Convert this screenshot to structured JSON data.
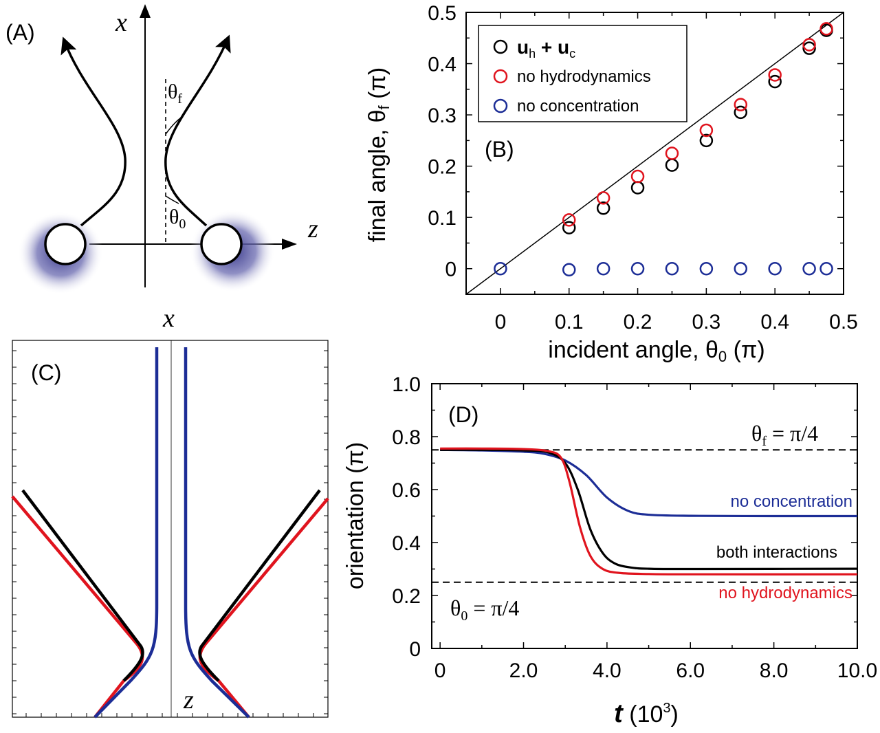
{
  "colors": {
    "black": "#000000",
    "red": "#e0141e",
    "blue": "#1c2d96",
    "purple": "#5a5aa0",
    "gray": "#9a9a9a"
  },
  "panelA": {
    "label": "(A)",
    "x_axis": "x",
    "z_axis": "z",
    "theta_f": "θf",
    "theta_0": "θ0"
  },
  "chart_data": [
    {
      "panel": "B",
      "type": "scatter",
      "label": "(B)",
      "xlabel": "incident angle, θ0 (π)",
      "ylabel": "final angle, θf (π)",
      "xlim": [
        -0.05,
        0.5
      ],
      "ylim": [
        -0.05,
        0.5
      ],
      "xticks": [
        "0",
        "0.1",
        "0.2",
        "0.3",
        "0.4",
        "0.5"
      ],
      "yticks": [
        "0",
        "0.1",
        "0.2",
        "0.3",
        "0.4",
        "0.5"
      ],
      "reference_line": "y = x",
      "legend_position": "top-left",
      "series": [
        {
          "name": "uh + uc",
          "name_main": "u",
          "name_sub1": "h",
          "name_mid": " + ",
          "name_main2": "u",
          "name_sub2": "c",
          "color": "black",
          "x": [
            0.1,
            0.15,
            0.2,
            0.25,
            0.3,
            0.35,
            0.4,
            0.45,
            0.475
          ],
          "y": [
            0.08,
            0.118,
            0.158,
            0.202,
            0.25,
            0.305,
            0.365,
            0.43,
            0.465
          ]
        },
        {
          "name": "no hydrodynamics",
          "color": "red",
          "x": [
            0.1,
            0.15,
            0.2,
            0.25,
            0.3,
            0.35,
            0.4,
            0.45,
            0.475
          ],
          "y": [
            0.095,
            0.138,
            0.18,
            0.225,
            0.27,
            0.32,
            0.378,
            0.437,
            0.468
          ]
        },
        {
          "name": "no concentration",
          "color": "blue",
          "x": [
            0,
            0.1,
            0.15,
            0.2,
            0.25,
            0.3,
            0.35,
            0.4,
            0.45,
            0.475
          ],
          "y": [
            0,
            -0.002,
            0,
            0,
            0,
            0,
            0,
            0,
            0,
            0
          ]
        }
      ]
    },
    {
      "panel": "C",
      "type": "line",
      "label": "(C)",
      "x_axis": "x",
      "z_axis": "z",
      "series": [
        {
          "name": "both interactions",
          "color": "black"
        },
        {
          "name": "no hydrodynamics",
          "color": "red"
        },
        {
          "name": "no concentration",
          "color": "blue"
        }
      ]
    },
    {
      "panel": "D",
      "type": "line",
      "label": "(D)",
      "xlabel_main": "t",
      "xlabel_unit": "(10",
      "xlabel_exp": "3",
      "xlabel_close": ")",
      "ylabel": "orientation (π)",
      "xlim": [
        -0.2,
        10.0
      ],
      "ylim": [
        0,
        1.0
      ],
      "xticks": [
        "0",
        "2.0",
        "4.0",
        "6.0",
        "8.0",
        "10.0"
      ],
      "yticks": [
        "0",
        "0.2",
        "0.4",
        "0.6",
        "0.8",
        "1.0"
      ],
      "hlines": [
        {
          "y": 0.75,
          "label": "θf = π/4"
        },
        {
          "y": 0.25,
          "label": "θ0 = π/4"
        }
      ],
      "series": [
        {
          "name": "no concentration",
          "color": "blue",
          "x": [
            0,
            1,
            2,
            2.5,
            3.0,
            3.5,
            4.0,
            4.5,
            5.0,
            6.0,
            8.0,
            10.0
          ],
          "y": [
            0.75,
            0.748,
            0.743,
            0.735,
            0.71,
            0.655,
            0.57,
            0.52,
            0.505,
            0.501,
            0.5,
            0.5
          ]
        },
        {
          "name": "both interactions",
          "color": "black",
          "x": [
            0,
            1,
            2,
            2.6,
            3.0,
            3.3,
            3.6,
            3.9,
            4.2,
            4.6,
            5.0,
            6.0,
            10.0
          ],
          "y": [
            0.75,
            0.75,
            0.748,
            0.74,
            0.7,
            0.6,
            0.45,
            0.36,
            0.32,
            0.305,
            0.301,
            0.3,
            0.301
          ]
        },
        {
          "name": "no hydrodynamics",
          "color": "red",
          "x": [
            0,
            1,
            2,
            2.6,
            2.9,
            3.1,
            3.35,
            3.6,
            3.9,
            4.3,
            5.0,
            6.0,
            10.0
          ],
          "y": [
            0.755,
            0.755,
            0.753,
            0.745,
            0.72,
            0.63,
            0.46,
            0.35,
            0.3,
            0.285,
            0.281,
            0.28,
            0.28
          ]
        }
      ]
    }
  ]
}
